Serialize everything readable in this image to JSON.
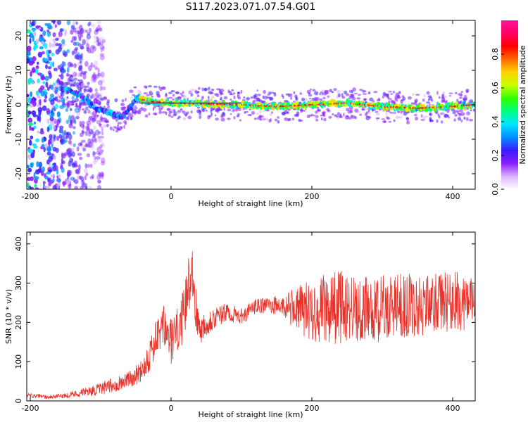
{
  "title": "S117.2023.071.07.54.G01",
  "chart_data": [
    {
      "type": "heatmap",
      "xlabel": "Height of straight line (km)",
      "ylabel": "Frequency (Hz)",
      "xlim": [
        -205,
        432
      ],
      "ylim": [
        -24.5,
        24.5
      ],
      "x_ticks": [
        -200,
        0,
        200,
        400
      ],
      "y_ticks": [
        -20,
        -10,
        0,
        10,
        20
      ],
      "colorbar": {
        "label": "Normalized spectral amplitude",
        "range": [
          0,
          1
        ],
        "ticks": [
          0.0,
          0.2,
          0.4,
          0.6,
          0.8
        ],
        "colors": [
          "#ffffff",
          "#d9b3ff",
          "#8a1bff",
          "#3a1cff",
          "#0090ff",
          "#00e5ff",
          "#00ff80",
          "#2fff00",
          "#c8ff00",
          "#ffd400",
          "#ff6a00",
          "#ff0000",
          "#ff0066",
          "#ff1493"
        ]
      },
      "ridge": [
        [
          -150,
          4.5
        ],
        [
          -140,
          4
        ],
        [
          -130,
          2.5
        ],
        [
          -120,
          1
        ],
        [
          -110,
          -0.5
        ],
        [
          -100,
          -1.5
        ],
        [
          -90,
          -2
        ],
        [
          -80,
          -3
        ],
        [
          -70,
          -3.5
        ],
        [
          -62,
          -2
        ],
        [
          -55,
          0
        ],
        [
          -50,
          2
        ],
        [
          -40,
          1.5
        ],
        [
          -30,
          1
        ],
        [
          0,
          0.5
        ],
        [
          100,
          0
        ],
        [
          150,
          -0.5
        ],
        [
          200,
          0
        ],
        [
          250,
          0.5
        ],
        [
          300,
          -0.5
        ],
        [
          350,
          -1
        ],
        [
          400,
          -0.5
        ],
        [
          430,
          0
        ]
      ]
    },
    {
      "type": "line",
      "xlabel": "Height of straight line (km)",
      "ylabel": "SNR (10 * v/v)",
      "xlim": [
        -205,
        432
      ],
      "ylim": [
        0,
        430
      ],
      "x_ticks": [
        -200,
        0,
        200,
        400
      ],
      "y_ticks": [
        0,
        100,
        200,
        300,
        400
      ],
      "series": [
        {
          "color": "#e8322a",
          "x": [
            -205,
            -190,
            -175,
            -160,
            -145,
            -130,
            -115,
            -100,
            -90,
            -80,
            -70,
            -60,
            -50,
            -40,
            -30,
            -20,
            -10,
            0,
            10,
            20,
            25,
            30,
            35,
            40,
            50,
            60,
            80,
            100,
            120,
            140,
            160,
            180,
            200,
            220,
            240,
            260,
            280,
            300,
            320,
            340,
            360,
            380,
            400,
            420,
            432
          ],
          "y": [
            15,
            12,
            10,
            12,
            15,
            20,
            25,
            30,
            35,
            42,
            48,
            55,
            65,
            85,
            120,
            160,
            190,
            150,
            180,
            230,
            300,
            340,
            240,
            180,
            200,
            210,
            225,
            215,
            240,
            245,
            240,
            235,
            230,
            235,
            240,
            235,
            230,
            235,
            245,
            240,
            245,
            250,
            255,
            250,
            255
          ],
          "spread": [
            5,
            5,
            5,
            6,
            7,
            10,
            12,
            15,
            18,
            20,
            20,
            20,
            25,
            35,
            45,
            50,
            55,
            60,
            60,
            70,
            80,
            60,
            60,
            40,
            35,
            30,
            25,
            20,
            20,
            20,
            30,
            60,
            80,
            90,
            95,
            90,
            85,
            85,
            80,
            85,
            80,
            75,
            80,
            70,
            60
          ]
        }
      ]
    }
  ]
}
